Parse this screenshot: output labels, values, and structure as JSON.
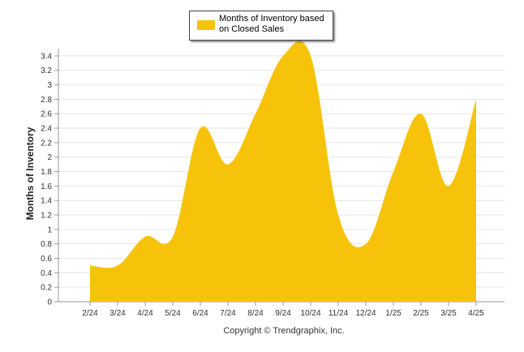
{
  "chart_data": {
    "type": "area",
    "series": [
      {
        "name": "Months of Inventory based on Closed Sales",
        "color": "#F7C30A",
        "values": [
          0.5,
          0.5,
          0.9,
          0.9,
          2.4,
          1.9,
          2.6,
          3.4,
          3.4,
          1.2,
          0.8,
          1.8,
          2.6,
          1.6,
          2.8
        ]
      }
    ],
    "categories": [
      "2/24",
      "3/24",
      "4/24",
      "5/24",
      "6/24",
      "7/24",
      "8/24",
      "9/24",
      "10/24",
      "11/24",
      "12/24",
      "1/25",
      "2/25",
      "3/25",
      "4/25"
    ],
    "ylabel": "Months of Inventory",
    "ylim": [
      0,
      3.5
    ],
    "yticks": [
      "0",
      "0.2",
      "0.4",
      "0.6",
      "0.8",
      "1",
      "1.2",
      "1.4",
      "1.6",
      "1.8",
      "2",
      "2.2",
      "2.4",
      "2.6",
      "2.8",
      "3",
      "3.2",
      "3.4"
    ],
    "grid": true,
    "legend_position": "top-center"
  },
  "credit": "Copyright © Trendgraphix, Inc."
}
